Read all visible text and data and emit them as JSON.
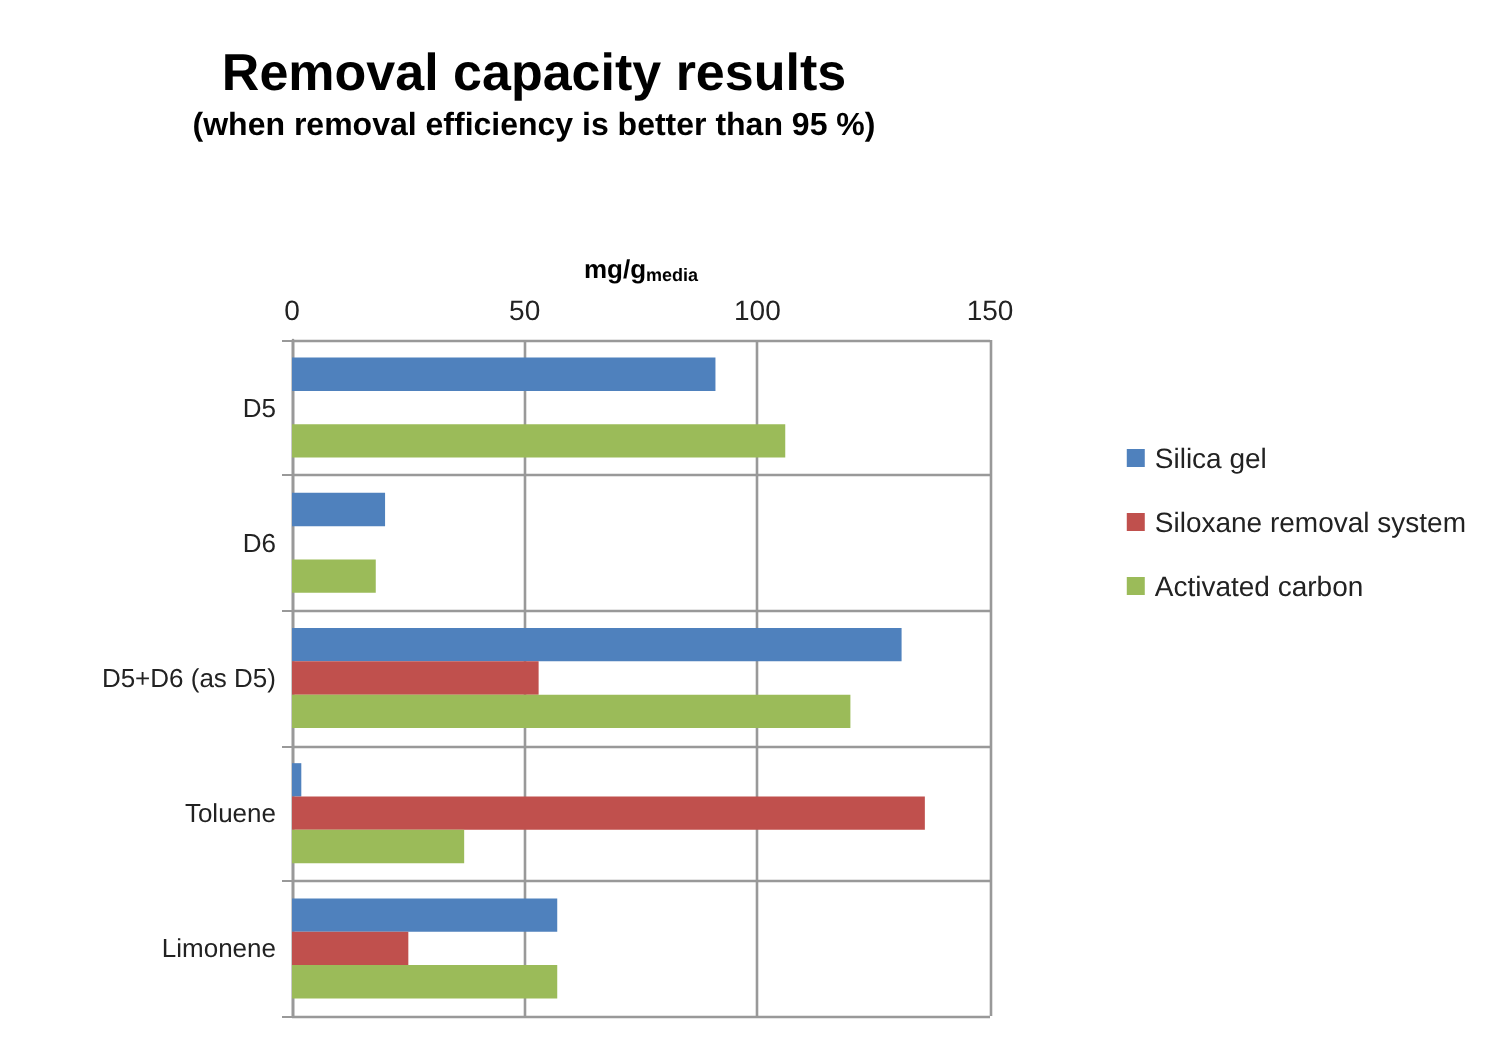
{
  "chart_data": {
    "type": "bar",
    "orientation": "horizontal",
    "title": "Removal capacity results",
    "subtitle": "(when removal efficiency is better than 95 %)",
    "xlabel": "mg/g$_{media}$",
    "categories": [
      "D5",
      "D6",
      "D5+D6 (as D5)",
      "Toluene",
      "Limonene"
    ],
    "series": [
      {
        "name": "Silica gel",
        "color": "#4f81bd",
        "values": [
          91,
          20,
          131,
          2,
          57
        ]
      },
      {
        "name": "Siloxane removal system",
        "color": "#c0504d",
        "values": [
          null,
          null,
          53,
          136,
          25
        ]
      },
      {
        "name": "Activated carbon",
        "color": "#9bbb59",
        "values": [
          106,
          18,
          120,
          37,
          57
        ]
      }
    ],
    "xlim": [
      0,
      150
    ],
    "xticks": [
      0,
      50,
      100,
      150
    ],
    "grid": true,
    "legend": "right"
  }
}
